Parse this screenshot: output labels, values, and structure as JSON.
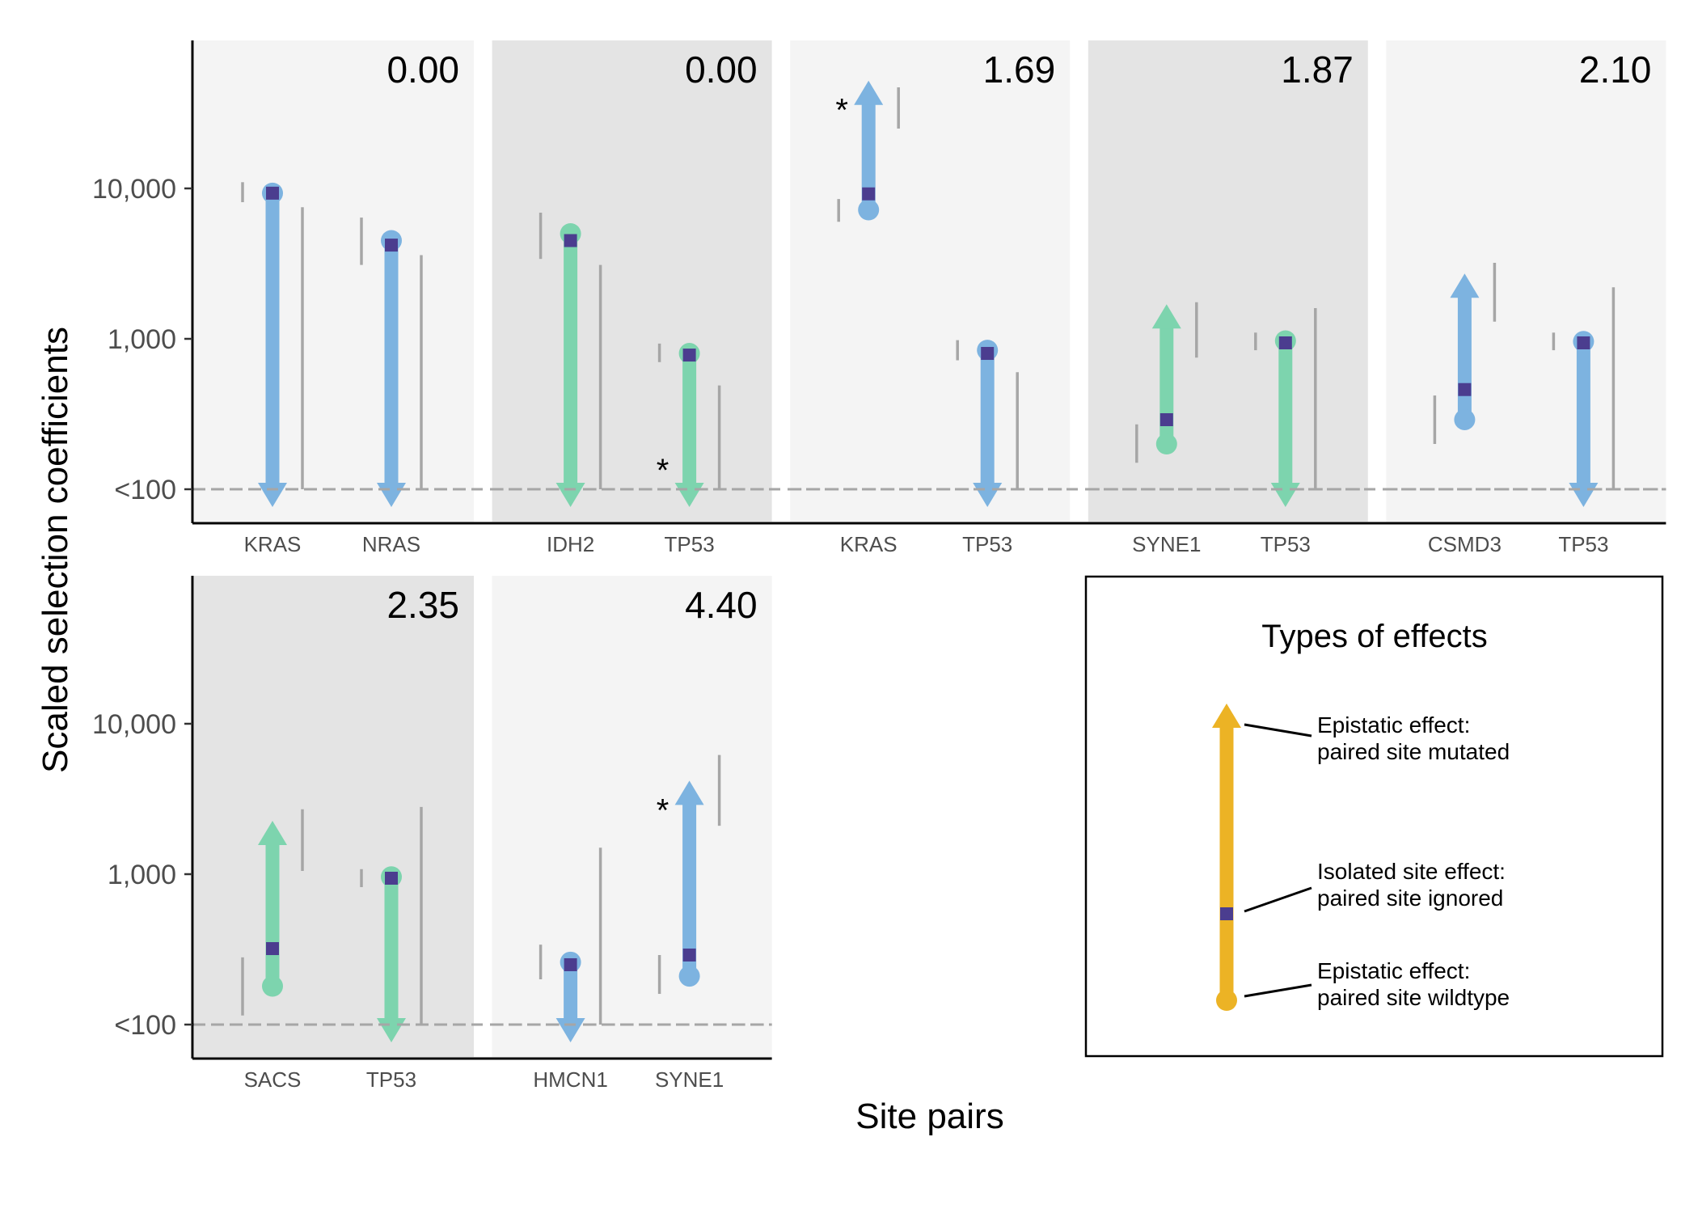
{
  "chart_data": {
    "type": "arrow-range",
    "xlabel": "Site pairs",
    "ylabel": "Scaled selection coefficients",
    "y_scale": "log10",
    "ylim": [
      70,
      120000
    ],
    "y_ticks": [
      {
        "value": 100,
        "label": "<100"
      },
      {
        "value": 1000,
        "label": "1,000"
      },
      {
        "value": 10000,
        "label": "10,000"
      }
    ],
    "baseline": {
      "value": 100,
      "style": "dashed"
    },
    "colors": {
      "blue": "#7db3e0",
      "green": "#7dd4ae",
      "gold": "#ecb325",
      "square": "#4b3d8f",
      "ci": "#a6a6a6",
      "panel_light": "#f4f4f4",
      "panel_dark": "#e4e4e4"
    },
    "panels": [
      {
        "score": "0.00",
        "bg": "light",
        "sites": [
          {
            "label": "KRAS",
            "color": "blue",
            "wildtype": 9300,
            "isolated": 9300,
            "mutated": 100,
            "direction": "down",
            "star": false,
            "ci_left": [
              8100,
              11000
            ],
            "ci_right": [
              100,
              7500
            ]
          },
          {
            "label": "NRAS",
            "color": "blue",
            "wildtype": 4500,
            "isolated": 4200,
            "mutated": 100,
            "direction": "down",
            "star": false,
            "ci_left": [
              3100,
              6400
            ],
            "ci_right": [
              100,
              3600
            ]
          }
        ]
      },
      {
        "score": "0.00",
        "bg": "dark",
        "sites": [
          {
            "label": "IDH2",
            "color": "green",
            "wildtype": 5000,
            "isolated": 4500,
            "mutated": 100,
            "direction": "down",
            "star": false,
            "ci_left": [
              3400,
              6900
            ],
            "ci_right": [
              100,
              3100
            ]
          },
          {
            "label": "TP53",
            "color": "green",
            "wildtype": 800,
            "isolated": 780,
            "mutated": 100,
            "direction": "down",
            "star": true,
            "ci_left": [
              700,
              930
            ],
            "ci_right": [
              100,
              490
            ]
          }
        ]
      },
      {
        "score": "1.69",
        "bg": "light",
        "sites": [
          {
            "label": "KRAS",
            "color": "blue",
            "wildtype": 7200,
            "isolated": 9200,
            "mutated": 46000,
            "direction": "up",
            "star": true,
            "ci_left": [
              6000,
              8500
            ],
            "ci_right": [
              25000,
              47000
            ]
          },
          {
            "label": "TP53",
            "color": "blue",
            "wildtype": 840,
            "isolated": 800,
            "mutated": 100,
            "direction": "down",
            "star": false,
            "ci_left": [
              720,
              980
            ],
            "ci_right": [
              100,
              600
            ]
          }
        ]
      },
      {
        "score": "1.87",
        "bg": "dark",
        "sites": [
          {
            "label": "SYNE1",
            "color": "green",
            "wildtype": 200,
            "isolated": 290,
            "mutated": 1500,
            "direction": "up",
            "star": false,
            "ci_left": [
              150,
              270
            ],
            "ci_right": [
              750,
              1750
            ]
          },
          {
            "label": "TP53",
            "color": "green",
            "wildtype": 970,
            "isolated": 940,
            "mutated": 100,
            "direction": "down",
            "star": false,
            "ci_left": [
              840,
              1100
            ],
            "ci_right": [
              100,
              1600
            ]
          }
        ]
      },
      {
        "score": "2.10",
        "bg": "light",
        "sites": [
          {
            "label": "CSMD3",
            "color": "blue",
            "wildtype": 290,
            "isolated": 460,
            "mutated": 2400,
            "direction": "up",
            "star": false,
            "ci_left": [
              200,
              420
            ],
            "ci_right": [
              1300,
              3200
            ]
          },
          {
            "label": "TP53",
            "color": "blue",
            "wildtype": 960,
            "isolated": 940,
            "mutated": 100,
            "direction": "down",
            "star": false,
            "ci_left": [
              840,
              1100
            ],
            "ci_right": [
              100,
              2200
            ]
          }
        ]
      },
      {
        "score": "2.35",
        "bg": "dark",
        "sites": [
          {
            "label": "SACS",
            "color": "green",
            "wildtype": 180,
            "isolated": 320,
            "mutated": 2000,
            "direction": "up",
            "star": false,
            "ci_left": [
              115,
              280
            ],
            "ci_right": [
              1050,
              2700
            ]
          },
          {
            "label": "TP53",
            "color": "green",
            "wildtype": 960,
            "isolated": 940,
            "mutated": 100,
            "direction": "down",
            "star": false,
            "ci_left": [
              820,
              1080
            ],
            "ci_right": [
              100,
              2800
            ]
          }
        ]
      },
      {
        "score": "4.40",
        "bg": "light",
        "sites": [
          {
            "label": "HMCN1",
            "color": "blue",
            "wildtype": 260,
            "isolated": 250,
            "mutated": 100,
            "direction": "down",
            "star": false,
            "ci_left": [
              200,
              340
            ],
            "ci_right": [
              100,
              1500
            ]
          },
          {
            "label": "SYNE1",
            "color": "blue",
            "wildtype": 210,
            "isolated": 290,
            "mutated": 3700,
            "direction": "up",
            "star": true,
            "ci_left": [
              160,
              290
            ],
            "ci_right": [
              2100,
              6200
            ]
          }
        ]
      }
    ],
    "legend": {
      "title": "Types of effects",
      "entries": [
        {
          "line1": "Epistatic effect:",
          "line2": "paired site mutated"
        },
        {
          "line1": "Isolated site effect:",
          "line2": "paired site ignored"
        },
        {
          "line1": "Epistatic effect:",
          "line2": "paired site wildtype"
        }
      ]
    }
  }
}
